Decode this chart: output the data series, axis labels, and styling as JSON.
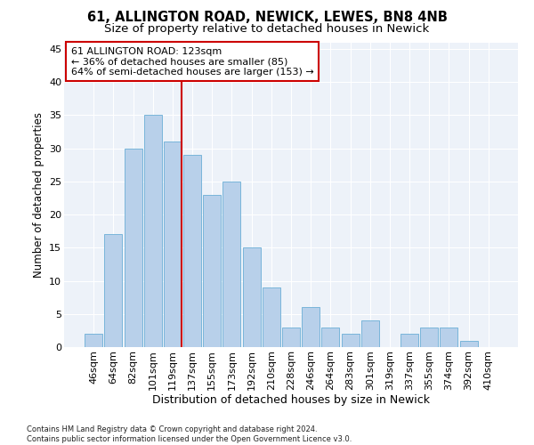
{
  "title1": "61, ALLINGTON ROAD, NEWICK, LEWES, BN8 4NB",
  "title2": "Size of property relative to detached houses in Newick",
  "xlabel": "Distribution of detached houses by size in Newick",
  "ylabel": "Number of detached properties",
  "bar_labels": [
    "46sqm",
    "64sqm",
    "82sqm",
    "101sqm",
    "119sqm",
    "137sqm",
    "155sqm",
    "173sqm",
    "192sqm",
    "210sqm",
    "228sqm",
    "246sqm",
    "264sqm",
    "283sqm",
    "301sqm",
    "319sqm",
    "337sqm",
    "355sqm",
    "374sqm",
    "392sqm",
    "410sqm"
  ],
  "bar_heights": [
    2,
    17,
    30,
    35,
    31,
    29,
    23,
    25,
    15,
    9,
    3,
    6,
    3,
    2,
    4,
    0,
    2,
    3,
    3,
    1,
    0
  ],
  "bar_color": "#b8d0ea",
  "bar_edge_color": "#6aaed6",
  "vline_color": "#cc0000",
  "annotation_text": "61 ALLINGTON ROAD: 123sqm\n← 36% of detached houses are smaller (85)\n64% of semi-detached houses are larger (153) →",
  "annotation_box_color": "#ffffff",
  "annotation_border_color": "#cc0000",
  "ylim": [
    0,
    46
  ],
  "yticks": [
    0,
    5,
    10,
    15,
    20,
    25,
    30,
    35,
    40,
    45
  ],
  "bg_color": "#edf2f9",
  "footnote": "Contains HM Land Registry data © Crown copyright and database right 2024.\nContains public sector information licensed under the Open Government Licence v3.0.",
  "title1_fontsize": 10.5,
  "title2_fontsize": 9.5,
  "xlabel_fontsize": 9,
  "ylabel_fontsize": 8.5,
  "tick_fontsize": 8,
  "annotation_fontsize": 8,
  "footnote_fontsize": 6
}
